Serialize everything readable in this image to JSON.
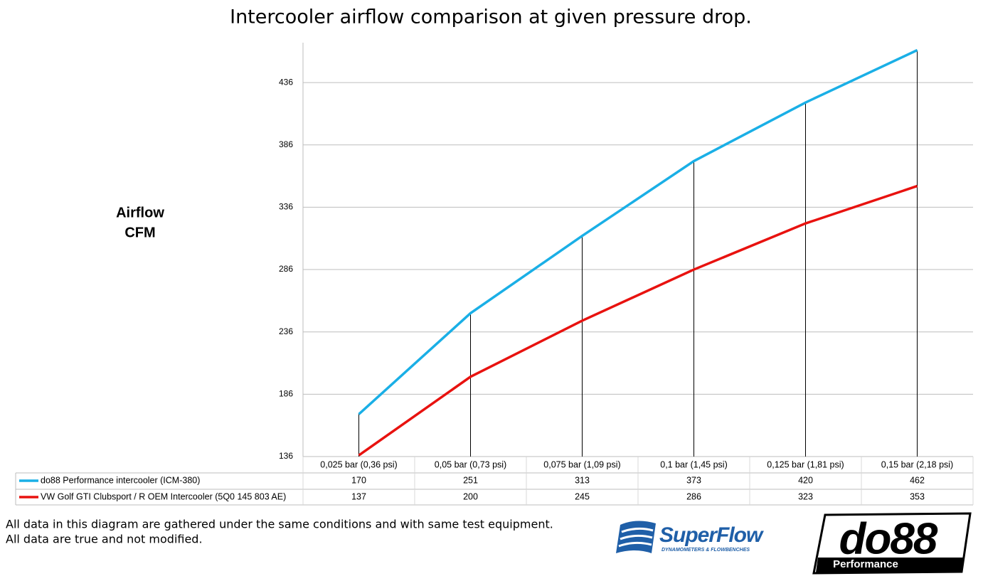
{
  "chart_data": {
    "type": "line",
    "title": "Intercooler airflow comparison at given pressure drop.",
    "y_label": [
      "Airflow",
      "CFM"
    ],
    "categories": [
      "0,025 bar (0,36 psi)",
      "0,05 bar (0,73 psi)",
      "0,075 bar (1,09 psi)",
      "0,1 bar (1,45 psi)",
      "0,125 bar (1,81 psi)",
      "0,15 bar (2,18 psi)"
    ],
    "series": [
      {
        "name": "do88 Performance intercooler (ICM-380)",
        "color": "#1aafe6",
        "values": [
          170,
          251,
          313,
          373,
          420,
          462
        ]
      },
      {
        "name": "VW Golf GTI Clubsport / R OEM Intercooler (5Q0 145 803 AE)",
        "color": "#e8120f",
        "values": [
          137,
          200,
          245,
          286,
          323,
          353
        ]
      }
    ],
    "ylim": [
      136,
      468
    ],
    "yticks": [
      136,
      186,
      236,
      286,
      336,
      386,
      436
    ],
    "grid": true,
    "drop_lines": true
  },
  "footnotes": [
    "All data in this diagram are gathered under the same conditions and with same test equipment.",
    "All data are true and not modified."
  ],
  "logos": {
    "superflow": "SuperFlow",
    "superflow_tagline": "DYNAMOMETERS & FLOWBENCHES",
    "do88": "do88",
    "do88_tagline": "Performance"
  }
}
